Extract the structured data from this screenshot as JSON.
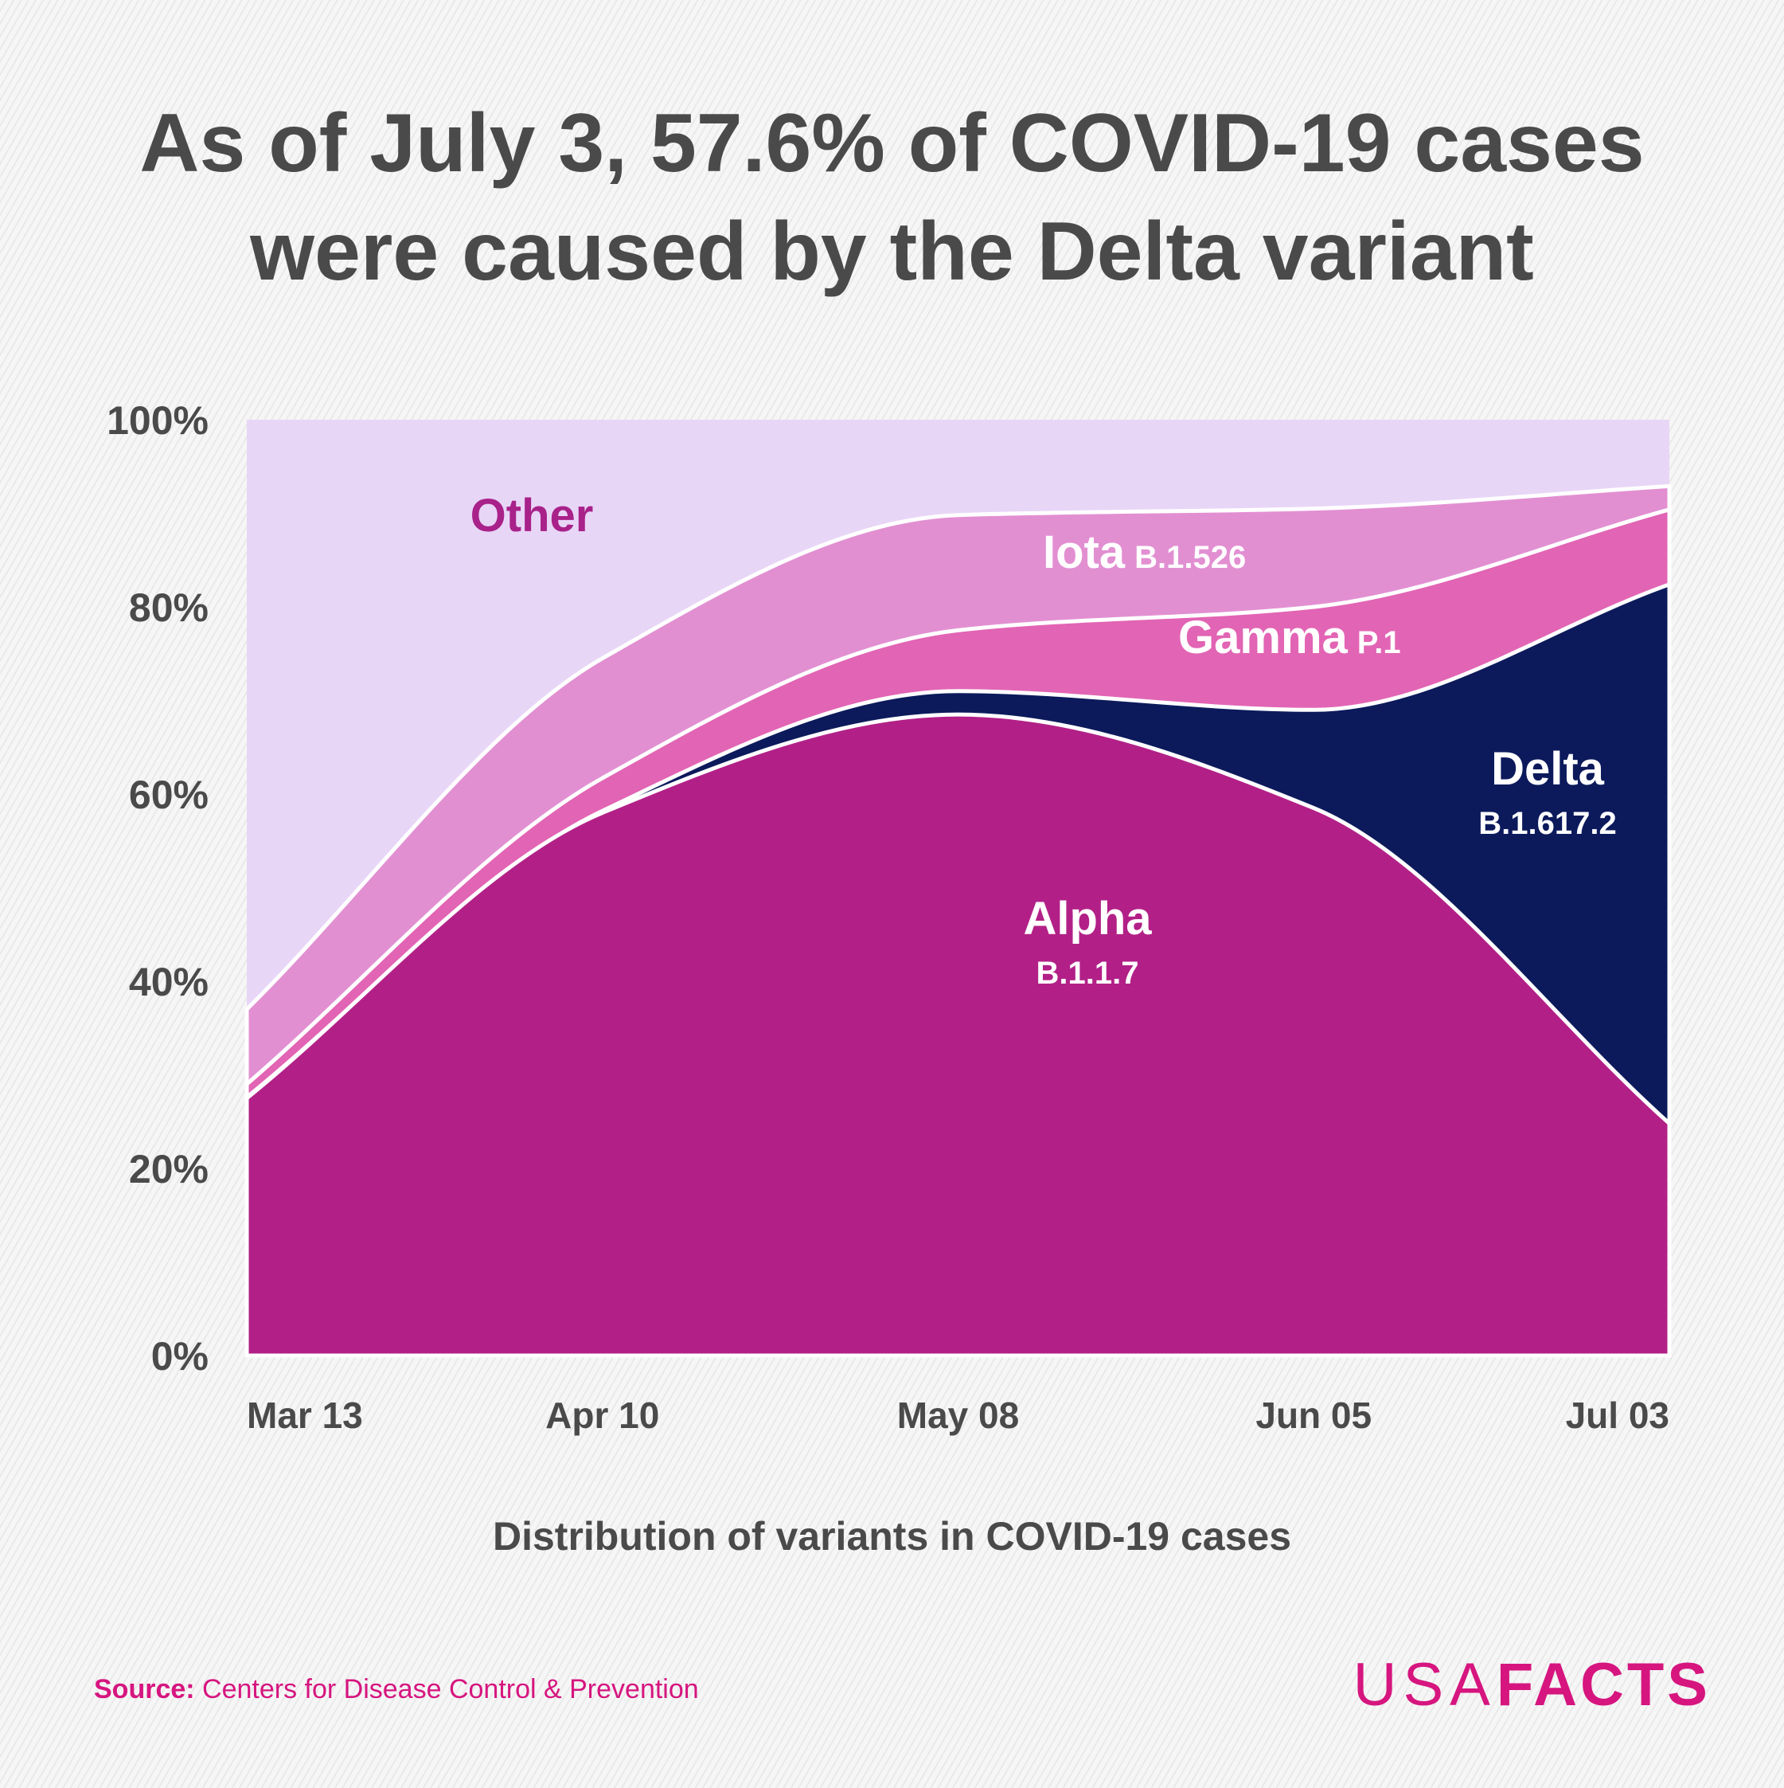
{
  "header": {
    "title_line1": "As of July 3, 57.6% of COVID-19 cases",
    "title_line2": "were caused by the Delta variant"
  },
  "subtitle": "Distribution of variants in COVID-19 cases",
  "source": {
    "label": "Source:",
    "text": "Centers for Disease Control & Prevention"
  },
  "logo": {
    "part1": "USA",
    "part2": "FACTS"
  },
  "colors": {
    "alpha": "#b22087",
    "delta": "#0c1a5c",
    "gamma": "#e264b4",
    "iota": "#e28fd2",
    "other": "#e8d6f7",
    "other_label": "#a8228a",
    "accent": "#d6157f",
    "text": "#4a4a4a"
  },
  "chart_data": {
    "type": "area",
    "stacked": true,
    "x": [
      "Mar 13",
      "Apr 10",
      "May 08",
      "Jun 05",
      "Jul 03"
    ],
    "x_ticks": [
      "Mar 13",
      "Apr 10",
      "May 08",
      "Jun 05",
      "Jul 03"
    ],
    "y_ticks": [
      "0%",
      "20%",
      "40%",
      "60%",
      "80%",
      "100%"
    ],
    "ylim": [
      0,
      100
    ],
    "series": [
      {
        "key": "alpha",
        "name": "Alpha",
        "sub": "B.1.1.7",
        "values": [
          27.5,
          58.0,
          68.5,
          58.5,
          24.8
        ]
      },
      {
        "key": "delta",
        "name": "Delta",
        "sub": "B.1.617.2",
        "values": [
          0.1,
          0.2,
          2.5,
          10.5,
          57.6
        ]
      },
      {
        "key": "gamma",
        "name": "Gamma",
        "sub": "P.1",
        "values": [
          1.4,
          3.5,
          6.5,
          11.0,
          8.0
        ]
      },
      {
        "key": "iota",
        "name": "Iota",
        "sub": "B.1.526",
        "values": [
          8.0,
          12.8,
          12.3,
          10.5,
          2.5
        ]
      },
      {
        "key": "other",
        "name": "Other",
        "sub": "",
        "values": [
          63.0,
          25.5,
          10.2,
          9.5,
          7.1
        ]
      }
    ]
  }
}
